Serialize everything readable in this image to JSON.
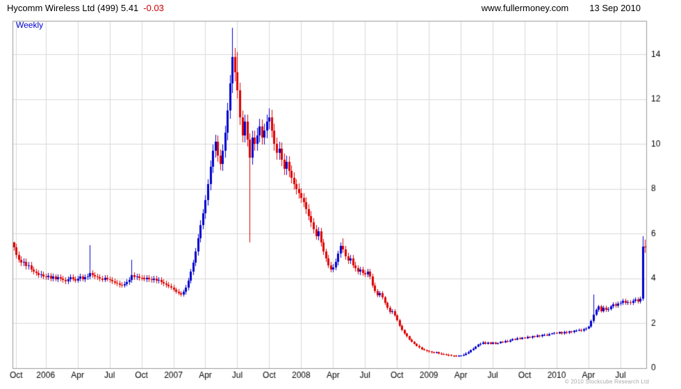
{
  "header": {
    "title_main": "Hycomm Wireless Ltd (499) 5.41",
    "title_change": "-0.03",
    "site": "www.fullermoney.com",
    "date": "13 Sep 2010"
  },
  "chart_label": "Weekly",
  "copyright": "© 2010 Stockcube Research Ltd",
  "chart_data": {
    "type": "candlestick",
    "frequency": "Weekly",
    "title": "Hycomm Wireless Ltd (499)",
    "last_price": 5.41,
    "change": -0.03,
    "xlabel": "",
    "ylabel": "",
    "grid": true,
    "ylim": [
      0,
      15.5
    ],
    "yticks": [
      0,
      2,
      4,
      6,
      8,
      10,
      12,
      14
    ],
    "xticks": [
      {
        "i": 1,
        "label": "Oct"
      },
      {
        "i": 13,
        "label": "2006"
      },
      {
        "i": 26,
        "label": "Apr"
      },
      {
        "i": 39,
        "label": "Jul"
      },
      {
        "i": 52,
        "label": "Oct"
      },
      {
        "i": 65,
        "label": "2007"
      },
      {
        "i": 78,
        "label": "Apr"
      },
      {
        "i": 91,
        "label": "Jul"
      },
      {
        "i": 104,
        "label": "Oct"
      },
      {
        "i": 117,
        "label": "2008"
      },
      {
        "i": 130,
        "label": "Apr"
      },
      {
        "i": 143,
        "label": "Jul"
      },
      {
        "i": 156,
        "label": "Oct"
      },
      {
        "i": 169,
        "label": "2009"
      },
      {
        "i": 182,
        "label": "Apr"
      },
      {
        "i": 195,
        "label": "Jul"
      },
      {
        "i": 208,
        "label": "Oct"
      },
      {
        "i": 221,
        "label": "2010"
      },
      {
        "i": 234,
        "label": "Apr"
      },
      {
        "i": 247,
        "label": "Jul"
      }
    ],
    "colors": {
      "up": "#0000cc",
      "down": "#dd0000",
      "grid": "#d9d9d9",
      "frame": "#999999",
      "text": "#000000"
    },
    "first_open": 5.6,
    "default_wick_frac": 0.03,
    "default_wick_abs": 0.04,
    "closes": [
      5.4,
      5.05,
      4.85,
      4.7,
      4.75,
      4.55,
      4.6,
      4.4,
      4.3,
      4.25,
      4.15,
      4.2,
      4.1,
      4.05,
      4.12,
      4.0,
      4.08,
      3.98,
      4.06,
      4.0,
      3.94,
      3.88,
      3.96,
      4.06,
      3.98,
      3.92,
      4.0,
      4.08,
      3.98,
      4.05,
      4.1,
      4.25,
      4.15,
      4.08,
      4.05,
      4.0,
      3.95,
      4.02,
      3.98,
      3.94,
      3.88,
      3.82,
      3.78,
      3.72,
      3.7,
      3.76,
      3.84,
      3.95,
      4.15,
      4.05,
      4.1,
      4.04,
      4.02,
      3.98,
      4.04,
      3.96,
      3.94,
      4.0,
      3.9,
      3.94,
      3.85,
      3.78,
      3.72,
      3.66,
      3.6,
      3.5,
      3.42,
      3.35,
      3.3,
      3.4,
      3.6,
      3.9,
      4.3,
      4.7,
      5.2,
      5.8,
      6.4,
      6.9,
      7.5,
      8.2,
      9.0,
      9.7,
      10.1,
      9.5,
      9.1,
      9.7,
      10.5,
      11.5,
      12.7,
      13.9,
      13.2,
      12.4,
      11.2,
      10.4,
      11.0,
      10.2,
      9.4,
      10.3,
      10.0,
      10.4,
      10.8,
      10.3,
      10.6,
      11.0,
      11.2,
      10.6,
      10.0,
      9.6,
      9.8,
      9.3,
      8.9,
      9.2,
      8.8,
      8.5,
      8.2,
      8.0,
      7.8,
      7.6,
      7.4,
      7.1,
      6.8,
      6.5,
      6.2,
      5.9,
      6.1,
      5.6,
      5.2,
      4.9,
      4.6,
      4.4,
      4.5,
      4.75,
      5.1,
      5.45,
      5.3,
      5.0,
      4.8,
      4.9,
      4.6,
      4.45,
      4.3,
      4.4,
      4.25,
      4.2,
      4.3,
      4.1,
      3.7,
      3.45,
      3.25,
      3.35,
      3.15,
      2.9,
      2.7,
      2.5,
      2.55,
      2.35,
      2.15,
      1.9,
      1.7,
      1.55,
      1.42,
      1.28,
      1.18,
      1.08,
      1.0,
      0.92,
      0.85,
      0.8,
      0.76,
      0.73,
      0.7,
      0.68,
      0.7,
      0.66,
      0.63,
      0.62,
      0.6,
      0.58,
      0.56,
      0.55,
      0.54,
      0.56,
      0.56,
      0.6,
      0.66,
      0.72,
      0.8,
      0.88,
      0.96,
      1.04,
      1.1,
      1.16,
      1.08,
      1.14,
      1.1,
      1.15,
      1.08,
      1.12,
      1.18,
      1.16,
      1.22,
      1.18,
      1.25,
      1.3,
      1.28,
      1.34,
      1.3,
      1.36,
      1.34,
      1.4,
      1.36,
      1.42,
      1.4,
      1.46,
      1.42,
      1.48,
      1.5,
      1.46,
      1.52,
      1.55,
      1.58,
      1.56,
      1.6,
      1.55,
      1.62,
      1.58,
      1.64,
      1.6,
      1.66,
      1.68,
      1.72,
      1.66,
      1.74,
      1.78,
      1.85,
      2.1,
      2.4,
      2.6,
      2.75,
      2.55,
      2.7,
      2.6,
      2.65,
      2.75,
      2.85,
      2.78,
      2.88,
      2.92,
      3.0,
      2.9,
      2.96,
      2.9,
      3.0,
      3.06,
      2.98,
      3.1,
      5.44,
      5.41
    ],
    "wick_overrides": {
      "0": {
        "h": 5.65
      },
      "31": {
        "h": 5.5
      },
      "48": {
        "h": 4.85
      },
      "89": {
        "h": 15.2
      },
      "91": {
        "h": 14.1
      },
      "96": {
        "l": 5.6
      },
      "104": {
        "h": 11.6
      },
      "134": {
        "h": 5.8
      },
      "236": {
        "h": 3.3
      },
      "256": {
        "h": 5.9,
        "l": 3.0
      },
      "257": {
        "h": 5.75,
        "l": 5.15
      }
    }
  }
}
